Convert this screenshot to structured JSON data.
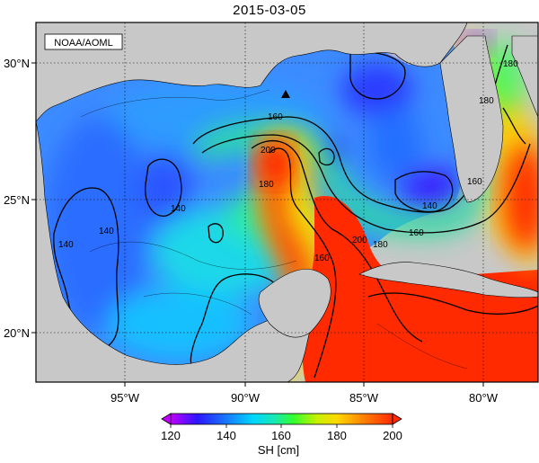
{
  "title": "2015-03-05",
  "credit": "NOAA/AOML",
  "lon_labels": [
    "95°W",
    "90°W",
    "85°W",
    "80°W"
  ],
  "lat_labels": [
    "30°N",
    "25°N",
    "20°N"
  ],
  "contour_labels": [
    "140",
    "140",
    "140",
    "140",
    "160",
    "160",
    "160",
    "160",
    "180",
    "180",
    "180",
    "180",
    "200",
    "200"
  ],
  "colorbar": {
    "label": "SH [cm]",
    "ticks": [
      "120",
      "140",
      "160",
      "180",
      "200"
    ],
    "colors": [
      "#c000ff",
      "#2c16ff",
      "#1678ff",
      "#00d6ff",
      "#18e8b0",
      "#30ff30",
      "#c8f000",
      "#ffd800",
      "#ff8000",
      "#ff2a00"
    ]
  },
  "colors": {
    "land": "#c8c8c8",
    "gulf_fill": "#3d8bff"
  }
}
